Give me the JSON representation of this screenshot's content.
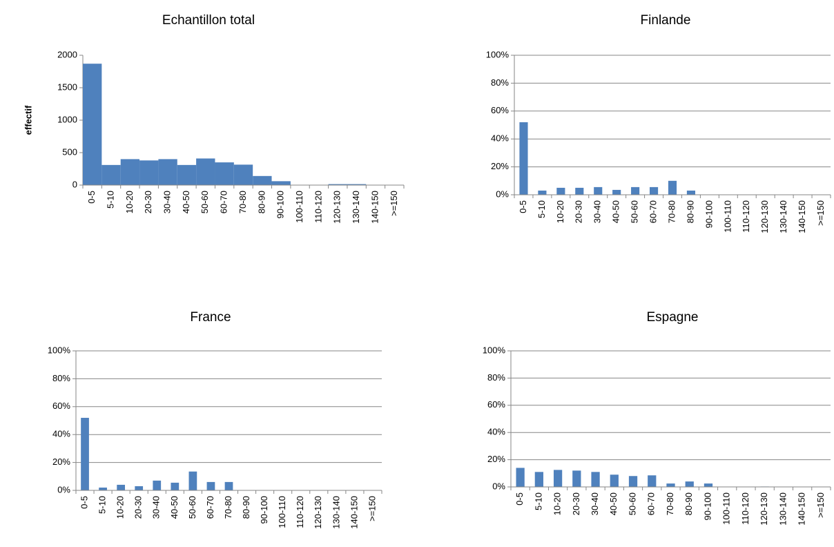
{
  "chart_data": [
    {
      "type": "bar",
      "title": "Echantillon total",
      "y_label": "effectif",
      "color": "#4f81bd",
      "grid": false,
      "categories": [
        "0-5",
        "5-10",
        "10-20",
        "20-30",
        "30-40",
        "40-50",
        "50-60",
        "60-70",
        "70-80",
        "80-90",
        "90-100",
        "100-110",
        "110-120",
        "120-130",
        "130-140",
        "140-150",
        ">=150"
      ],
      "values": [
        1870,
        310,
        400,
        380,
        400,
        310,
        410,
        350,
        315,
        140,
        60,
        5,
        5,
        15,
        15,
        5,
        3
      ],
      "ylim": [
        0,
        2000
      ],
      "yticks": [
        0,
        500,
        1000,
        1500,
        2000
      ]
    },
    {
      "type": "bar",
      "title": "Finlande",
      "color": "#4f81bd",
      "grid": true,
      "categories": [
        "0-5",
        "5-10",
        "10-20",
        "20-30",
        "30-40",
        "40-50",
        "50-60",
        "60-70",
        "70-80",
        "80-90",
        "90-100",
        "100-110",
        "110-120",
        "120-130",
        "130-140",
        "140-150",
        ">=150"
      ],
      "values": [
        52,
        3,
        5,
        5,
        5.5,
        3.5,
        5.5,
        5.5,
        10,
        3,
        0,
        0,
        0,
        0,
        0,
        0,
        0
      ],
      "ylim": [
        0,
        100
      ],
      "yticks": [
        {
          "value": 0,
          "label": "0%"
        },
        {
          "value": 20,
          "label": "20%"
        },
        {
          "value": 40,
          "label": "40%"
        },
        {
          "value": 60,
          "label": "60%"
        },
        {
          "value": 80,
          "label": "80%"
        },
        {
          "value": 100,
          "label": "100%"
        }
      ]
    },
    {
      "type": "bar",
      "title": "France",
      "color": "#4f81bd",
      "grid": true,
      "categories": [
        "0-5",
        "5-10",
        "10-20",
        "20-30",
        "30-40",
        "40-50",
        "50-60",
        "60-70",
        "70-80",
        "80-90",
        "90-100",
        "100-110",
        "110-120",
        "120-130",
        "130-140",
        "140-150",
        ">=150"
      ],
      "values": [
        52,
        2,
        4,
        3,
        7,
        5.5,
        13.5,
        6,
        6,
        0,
        0,
        0,
        0,
        0,
        0,
        0,
        0
      ],
      "ylim": [
        0,
        100
      ],
      "yticks": [
        {
          "value": 0,
          "label": "0%"
        },
        {
          "value": 20,
          "label": "20%"
        },
        {
          "value": 40,
          "label": "40%"
        },
        {
          "value": 60,
          "label": "60%"
        },
        {
          "value": 80,
          "label": "80%"
        },
        {
          "value": 100,
          "label": "100%"
        }
      ]
    },
    {
      "type": "bar",
      "title": "Espagne",
      "color": "#4f81bd",
      "grid": true,
      "categories": [
        "0-5",
        "5-10",
        "10-20",
        "20-30",
        "30-40",
        "40-50",
        "50-60",
        "60-70",
        "70-80",
        "80-90",
        "90-100",
        "100-110",
        "110-120",
        "120-130",
        "130-140",
        "140-150",
        ">=150"
      ],
      "values": [
        14,
        11,
        12.5,
        12,
        11,
        9,
        8,
        8.5,
        2.5,
        4,
        2.5,
        0.2,
        0,
        0.3,
        0,
        0,
        0
      ],
      "ylim": [
        0,
        100
      ],
      "yticks": [
        {
          "value": 0,
          "label": "0%"
        },
        {
          "value": 20,
          "label": "20%"
        },
        {
          "value": 40,
          "label": "40%"
        },
        {
          "value": 60,
          "label": "60%"
        },
        {
          "value": 80,
          "label": "80%"
        },
        {
          "value": 100,
          "label": "100%"
        }
      ]
    }
  ]
}
